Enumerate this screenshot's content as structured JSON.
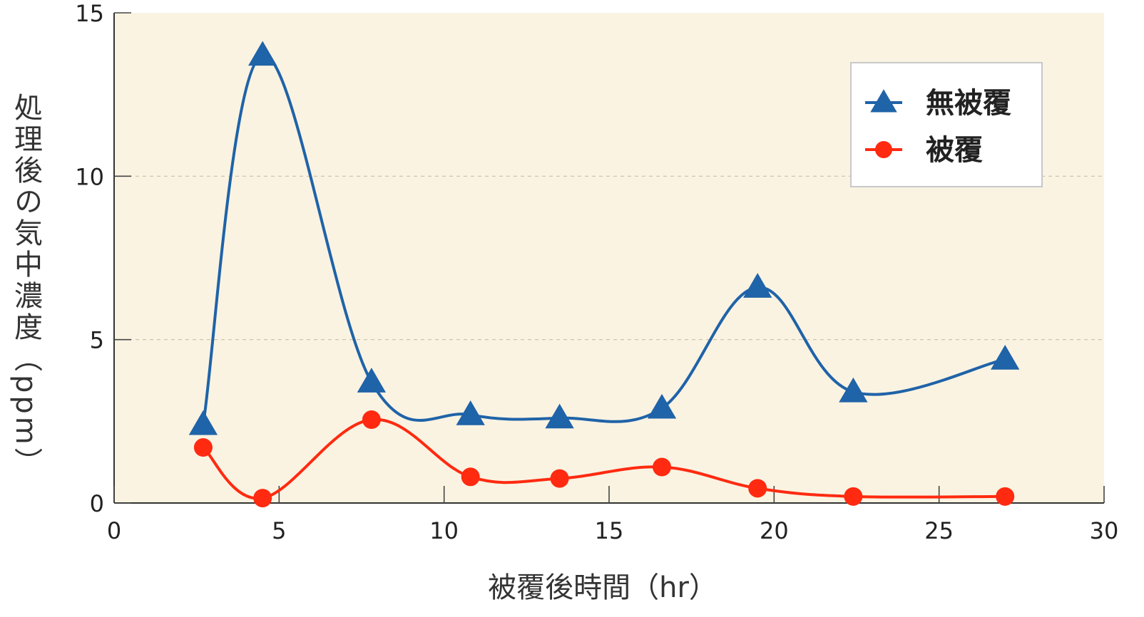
{
  "chart_data": {
    "type": "line",
    "title": "",
    "xlabel": "被覆後時間（hr）",
    "ylabel": "処理後の気中濃度（ppm）",
    "xlim": [
      0,
      30
    ],
    "ylim": [
      0,
      15
    ],
    "xticks": [
      0,
      5,
      10,
      15,
      20,
      25,
      30
    ],
    "yticks": [
      0,
      5,
      10,
      15
    ],
    "grid": "horizontal dashed at 5 and 10",
    "legend_position": "top-right",
    "background_color": "#faf3e2",
    "series": [
      {
        "name": "無被覆",
        "marker": "triangle",
        "color": "#1f63a8",
        "x": [
          2.7,
          4.5,
          7.8,
          10.8,
          13.5,
          16.6,
          19.5,
          22.4,
          27.0
        ],
        "y": [
          2.4,
          13.7,
          3.7,
          2.7,
          2.6,
          2.9,
          6.6,
          3.4,
          4.4
        ]
      },
      {
        "name": "被覆",
        "marker": "circle",
        "color": "#ff2a10",
        "x": [
          2.7,
          4.5,
          7.8,
          10.8,
          13.5,
          16.6,
          19.5,
          22.4,
          27.0
        ],
        "y": [
          1.7,
          0.15,
          2.55,
          0.8,
          0.75,
          1.1,
          0.45,
          0.2,
          0.2
        ]
      }
    ]
  }
}
